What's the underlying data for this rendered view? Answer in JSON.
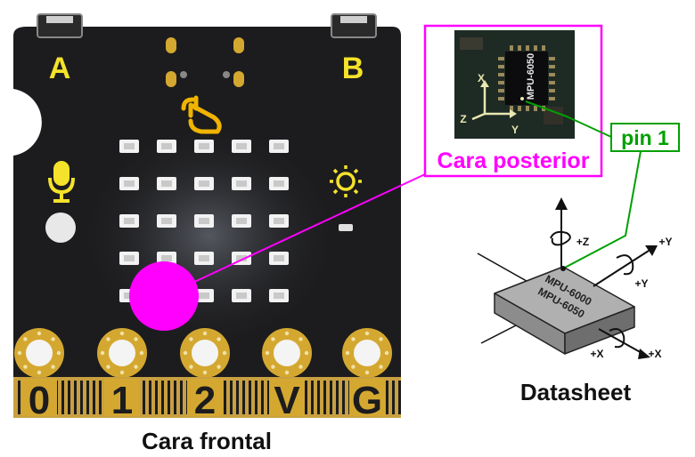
{
  "board": {
    "button_a": "A",
    "button_b": "B",
    "caption": "Cara frontal",
    "pins": [
      "0",
      "1",
      "2",
      "V",
      "G"
    ]
  },
  "chip_photo": {
    "chip_text": "MPU-6050",
    "axis_x": "X",
    "axis_y": "Y",
    "axis_z": "Z",
    "caption": "Cara posterior"
  },
  "callout": {
    "pin1": "pin 1"
  },
  "datasheet": {
    "caption": "Datasheet",
    "chip_line1": "MPU-6000",
    "chip_line2": "MPU-6050",
    "plus_z": "+Z",
    "plus_y_1": "+Y",
    "plus_y_2": "+Y",
    "plus_x_1": "+X",
    "plus_x_2": "+X"
  },
  "colors": {
    "board": "#1c1c1e",
    "gold": "#d4a830",
    "label_yellow": "#f5e22a",
    "magenta": "#ff00ff",
    "callout_green": "#00a000",
    "led": "#f2f2f2"
  }
}
